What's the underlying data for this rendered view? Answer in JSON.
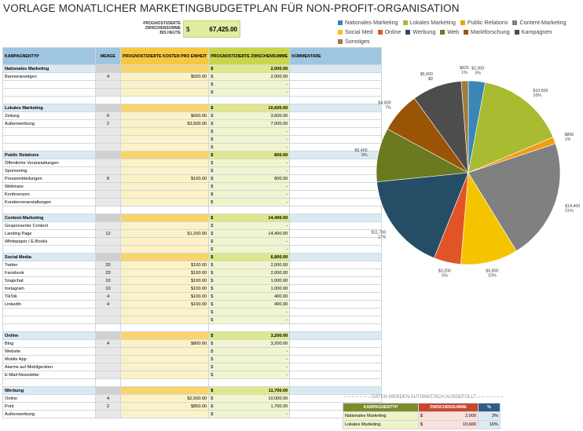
{
  "title": "VORLAGE MONATLICHER MARKETINGBUDGETPLAN FÜR NON-PROFIT-ORGANISATION",
  "summary": {
    "label_line1": "PROGNOSTIZIERTE",
    "label_line2": "ZWISCHENSUMME",
    "label_line3": "BIS HEUTE",
    "currency": "$",
    "value": "67,425.00"
  },
  "table": {
    "headers": {
      "type": "KAMPAGNENTYP",
      "qty": "MENGE",
      "cost": "PROGNOSTIZIERTE KOSTEN PRO EINHEIT",
      "subtotal": "PROGNOSTIZIERTE ZWISCHENSUMME",
      "comments": "KOMMENTARE"
    },
    "rows": [
      {
        "kind": "cat",
        "name": "Nationales Marketing",
        "qty": "",
        "cost": "",
        "cur": "$",
        "sub": "2,000.00"
      },
      {
        "kind": "item",
        "name": "Banneranzeigen",
        "qty": "4",
        "cost": "$500.00",
        "cur": "$",
        "sub": "2,000.00"
      },
      {
        "kind": "item",
        "name": "",
        "qty": "",
        "cost": "",
        "cur": "$",
        "sub": "-"
      },
      {
        "kind": "item",
        "name": "",
        "qty": "",
        "cost": "",
        "cur": "$",
        "sub": "-"
      },
      {
        "kind": "blank"
      },
      {
        "kind": "cat",
        "name": "Lokales Marketing",
        "qty": "",
        "cost": "",
        "cur": "$",
        "sub": "10,600.00"
      },
      {
        "kind": "item",
        "name": "Zeitung",
        "qty": "6",
        "cost": "$600.00",
        "cur": "$",
        "sub": "3,600.00"
      },
      {
        "kind": "item",
        "name": "Außenwerbung",
        "qty": "2",
        "cost": "$3,500.00",
        "cur": "$",
        "sub": "7,000.00"
      },
      {
        "kind": "item",
        "name": "",
        "qty": "",
        "cost": "",
        "cur": "$",
        "sub": "-"
      },
      {
        "kind": "item",
        "name": "",
        "qty": "",
        "cost": "",
        "cur": "$",
        "sub": "-"
      },
      {
        "kind": "item",
        "name": "",
        "qty": "",
        "cost": "",
        "cur": "$",
        "sub": "-"
      },
      {
        "kind": "cat",
        "name": "Public Relations",
        "qty": "",
        "cost": "",
        "cur": "$",
        "sub": "800.00"
      },
      {
        "kind": "item",
        "name": "Öffentliche Veranstaltungen",
        "qty": "",
        "cost": "",
        "cur": "$",
        "sub": "-"
      },
      {
        "kind": "item",
        "name": "Sponsoring",
        "qty": "",
        "cost": "",
        "cur": "$",
        "sub": "-"
      },
      {
        "kind": "item",
        "name": "Pressemitteilungen",
        "qty": "8",
        "cost": "$100.00",
        "cur": "$",
        "sub": "800.00"
      },
      {
        "kind": "item",
        "name": "Webinare",
        "qty": "",
        "cost": "",
        "cur": "$",
        "sub": "-"
      },
      {
        "kind": "item",
        "name": "Konferenzen",
        "qty": "",
        "cost": "",
        "cur": "$",
        "sub": "-"
      },
      {
        "kind": "item",
        "name": "Kundenveranstaltungen",
        "qty": "",
        "cost": "",
        "cur": "$",
        "sub": "-"
      },
      {
        "kind": "blank"
      },
      {
        "kind": "cat",
        "name": "Content-Marketing",
        "qty": "",
        "cost": "",
        "cur": "$",
        "sub": "14,400.00"
      },
      {
        "kind": "item",
        "name": "Gesponserter Content",
        "qty": "",
        "cost": "",
        "cur": "$",
        "sub": "-"
      },
      {
        "kind": "item",
        "name": "Landing Page",
        "qty": "12",
        "cost": "$1,200.00",
        "cur": "$",
        "sub": "14,400.00"
      },
      {
        "kind": "item",
        "name": "Whitepaper / E-Books",
        "qty": "",
        "cost": "",
        "cur": "$",
        "sub": "-"
      },
      {
        "kind": "item",
        "name": "",
        "qty": "",
        "cost": "",
        "cur": "$",
        "sub": "-"
      },
      {
        "kind": "cat",
        "name": "Social Media",
        "qty": "",
        "cost": "",
        "cur": "$",
        "sub": "6,800.00"
      },
      {
        "kind": "item",
        "name": "Twitter",
        "qty": "20",
        "cost": "$100.00",
        "cur": "$",
        "sub": "2,000.00"
      },
      {
        "kind": "item",
        "name": "Facebook",
        "qty": "20",
        "cost": "$100.00",
        "cur": "$",
        "sub": "2,000.00"
      },
      {
        "kind": "item",
        "name": "Snapchat",
        "qty": "10",
        "cost": "$100.00",
        "cur": "$",
        "sub": "1,000.00"
      },
      {
        "kind": "item",
        "name": "Instagram",
        "qty": "10",
        "cost": "$100.00",
        "cur": "$",
        "sub": "1,000.00"
      },
      {
        "kind": "item",
        "name": "TikTok",
        "qty": "4",
        "cost": "$100.00",
        "cur": "$",
        "sub": "400.00"
      },
      {
        "kind": "item",
        "name": "LinkedIn",
        "qty": "4",
        "cost": "$100.00",
        "cur": "$",
        "sub": "400.00"
      },
      {
        "kind": "item",
        "name": "",
        "qty": "",
        "cost": "",
        "cur": "$",
        "sub": "-"
      },
      {
        "kind": "item",
        "name": "",
        "qty": "",
        "cost": "",
        "cur": "$",
        "sub": "-"
      },
      {
        "kind": "blank"
      },
      {
        "kind": "cat",
        "name": "Online",
        "qty": "",
        "cost": "",
        "cur": "$",
        "sub": "3,200.00"
      },
      {
        "kind": "item",
        "name": "Blog",
        "qty": "4",
        "cost": "$800.00",
        "cur": "$",
        "sub": "3,200.00"
      },
      {
        "kind": "item",
        "name": "Website",
        "qty": "",
        "cost": "",
        "cur": "$",
        "sub": "-"
      },
      {
        "kind": "item",
        "name": "Mobile App",
        "qty": "",
        "cost": "",
        "cur": "$",
        "sub": "-"
      },
      {
        "kind": "item",
        "name": "Alarme auf Mobilgeräten",
        "qty": "",
        "cost": "",
        "cur": "$",
        "sub": "-"
      },
      {
        "kind": "item",
        "name": "E-Mail-Newsletter",
        "qty": "",
        "cost": "",
        "cur": "$",
        "sub": "-"
      },
      {
        "kind": "blank"
      },
      {
        "kind": "cat",
        "name": "Werbung",
        "qty": "",
        "cost": "",
        "cur": "$",
        "sub": "11,700.00"
      },
      {
        "kind": "item",
        "name": "Online",
        "qty": "4",
        "cost": "$2,500.00",
        "cur": "$",
        "sub": "10,000.00"
      },
      {
        "kind": "item",
        "name": "Print",
        "qty": "2",
        "cost": "$850.00",
        "cur": "$",
        "sub": "1,700.00"
      },
      {
        "kind": "item",
        "name": "Außenwerbung",
        "qty": "",
        "cost": "",
        "cur": "$",
        "sub": "-"
      }
    ]
  },
  "chart_data": {
    "type": "pie",
    "legend_position": "top",
    "slices": [
      {
        "name": "Nationales Marketing",
        "label_value": "$2,000",
        "label_pct": "3%",
        "value": 2000,
        "color": "#3a86b5"
      },
      {
        "name": "Lokales Marketing",
        "label_value": "$10,600",
        "label_pct": "16%",
        "value": 10600,
        "color": "#a9bb30"
      },
      {
        "name": "Public Relations",
        "label_value": "$800",
        "label_pct": "1%",
        "value": 800,
        "color": "#f39c12"
      },
      {
        "name": "Content-Marketing",
        "label_value": "$14,400",
        "label_pct": "21%",
        "value": 14400,
        "color": "#808080"
      },
      {
        "name": "Social Media",
        "label_value": "$6,800",
        "label_pct": "10%",
        "value": 6800,
        "color": "#f5c400"
      },
      {
        "name": "Online",
        "label_value": "$3,200",
        "label_pct": "5%",
        "value": 3200,
        "color": "#e15426"
      },
      {
        "name": "Werbung",
        "label_value": "$11,700",
        "label_pct": "17%",
        "value": 11700,
        "color": "#264d66"
      },
      {
        "name": "Web",
        "label_value": "$6,400",
        "label_pct": "9%",
        "value": 6400,
        "color": "#6b7a1f"
      },
      {
        "name": "Marktforschung",
        "label_value": "$4,800",
        "label_pct": "7%",
        "value": 4800,
        "color": "#9a5405"
      },
      {
        "name": "Kampagnen",
        "label_value": "$5,900",
        "label_pct": "9%",
        "value": 5900,
        "color": "#4d4d4d"
      },
      {
        "name": "Sonstiges",
        "label_value": "$825",
        "label_pct": "1%",
        "value": 825,
        "color": "#a07b3f"
      }
    ],
    "extra_labels": [
      {
        "text": "$0"
      }
    ]
  },
  "legend_items": [
    {
      "label": "Nationales Marketing",
      "color": "#3a86b5"
    },
    {
      "label": "Lokales Marketing",
      "color": "#a9bb30"
    },
    {
      "label": "Public Relations",
      "color": "#f39c12"
    },
    {
      "label": "Content-Marketing",
      "color": "#808080"
    },
    {
      "label": "Social Med",
      "color": "#f5c400"
    },
    {
      "label": "Online",
      "color": "#e15426"
    },
    {
      "label": "Werbung",
      "color": "#264d66"
    },
    {
      "label": "Web",
      "color": "#6b7a1f"
    },
    {
      "label": "Marktforschung",
      "color": "#9a5405"
    },
    {
      "label": "Kampagnen",
      "color": "#4d4d4d"
    },
    {
      "label": "Sonstiges",
      "color": "#a07b3f"
    }
  ],
  "auto_summary": {
    "header": "– – – – – – – DATEN WERDEN AUTOMATISCH AUSGEFÜLLT – – – – – – –",
    "columns": {
      "type": "KAMPAGNENTYP",
      "subtotal": "ZWISCHENSUMME",
      "pct": "%"
    },
    "rows": [
      {
        "name": "Nationales Marketing",
        "cur": "$",
        "sub": "2,000",
        "pct": "3%"
      },
      {
        "name": "Lokales Marketing",
        "cur": "$",
        "sub": "10,600",
        "pct": "16%"
      }
    ]
  }
}
